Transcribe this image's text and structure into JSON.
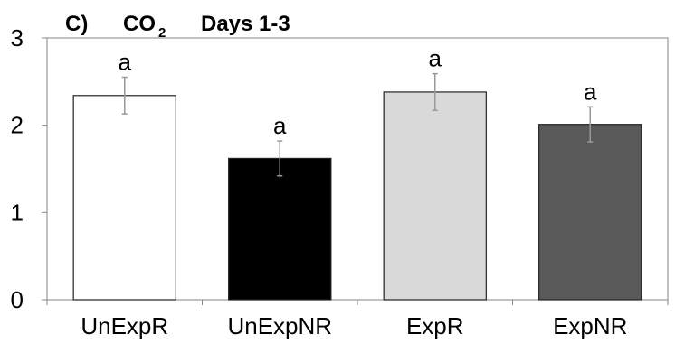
{
  "chart_data": {
    "type": "bar",
    "title": {
      "panel": "C)",
      "main": "CO",
      "subscript": "2",
      "period": "Days 1-3"
    },
    "categories": [
      "UnExpR",
      "UnExpNR",
      "ExpR",
      "ExpNR"
    ],
    "values": [
      2.34,
      1.62,
      2.38,
      2.01
    ],
    "errors": [
      0.21,
      0.2,
      0.21,
      0.2
    ],
    "data_labels": [
      "a",
      "a",
      "a",
      "a"
    ],
    "bar_colors": [
      "#ffffff",
      "#000000",
      "#d9d9d9",
      "#595959"
    ],
    "bar_stroke": "#222222",
    "error_color": "#999999",
    "axis_color": "#868686",
    "ylim": [
      0,
      3
    ],
    "yticks": [
      "0",
      "1",
      "2",
      "3"
    ],
    "xlabel": "",
    "ylabel": "",
    "grid": false,
    "legend": "none"
  }
}
